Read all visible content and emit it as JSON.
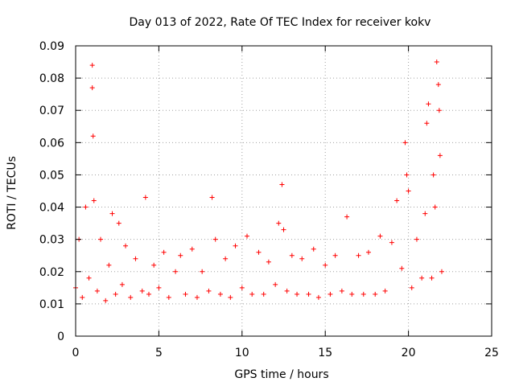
{
  "chart_data": {
    "type": "scatter",
    "title": "Day 013 of 2022, Rate Of TEC Index for receiver kokv",
    "xlabel": "GPS time / hours",
    "ylabel": "ROTI / TECUs",
    "xlim": [
      0,
      25
    ],
    "ylim": [
      0,
      0.09
    ],
    "xticks": [
      0,
      5,
      10,
      15,
      20,
      25
    ],
    "yticks": [
      0,
      0.01,
      0.02,
      0.03,
      0.04,
      0.05,
      0.06,
      0.07,
      0.08,
      0.09
    ],
    "xtick_labels": [
      "0",
      "5",
      "10",
      "15",
      "20",
      "25"
    ],
    "ytick_labels": [
      "0",
      "0.01",
      "0.02",
      "0.03",
      "0.04",
      "0.05",
      "0.06",
      "0.07",
      "0.08",
      "0.09"
    ],
    "grid": true,
    "marker": "plus",
    "color": "#ff0000",
    "series": [
      {
        "x": [
          0.0,
          0.2,
          0.4,
          0.6,
          0.8,
          1.0,
          1.0,
          1.05,
          1.1,
          1.3,
          1.5,
          1.8,
          2.0,
          2.2,
          2.4,
          2.6,
          2.8,
          3.0,
          3.3,
          3.6,
          4.0,
          4.2,
          4.4,
          4.7,
          5.0,
          5.3,
          5.6,
          6.0,
          6.3,
          6.6,
          7.0,
          7.3,
          7.6,
          8.0,
          8.2,
          8.4,
          8.7,
          9.0,
          9.3,
          9.6,
          10.0,
          10.3,
          10.6,
          11.0,
          11.3,
          11.6,
          12.0,
          12.2,
          12.4,
          12.5,
          12.7,
          13.0,
          13.3,
          13.6,
          14.0,
          14.3,
          14.6,
          15.0,
          15.3,
          15.6,
          16.0,
          16.3,
          16.6,
          17.0,
          17.3,
          17.6,
          18.0,
          18.3,
          18.6,
          19.0,
          19.3,
          19.6,
          19.8,
          19.9,
          20.0,
          20.2,
          20.5,
          20.8,
          21.0,
          21.1,
          21.2,
          21.4,
          21.5,
          21.6,
          21.7,
          21.8,
          21.85,
          21.9,
          22.0
        ],
        "y": [
          0.015,
          0.03,
          0.012,
          0.04,
          0.018,
          0.084,
          0.077,
          0.062,
          0.042,
          0.014,
          0.03,
          0.011,
          0.022,
          0.038,
          0.013,
          0.035,
          0.016,
          0.028,
          0.012,
          0.024,
          0.014,
          0.043,
          0.013,
          0.022,
          0.015,
          0.026,
          0.012,
          0.02,
          0.025,
          0.013,
          0.027,
          0.012,
          0.02,
          0.014,
          0.043,
          0.03,
          0.013,
          0.024,
          0.012,
          0.028,
          0.015,
          0.031,
          0.013,
          0.026,
          0.013,
          0.023,
          0.016,
          0.035,
          0.047,
          0.033,
          0.014,
          0.025,
          0.013,
          0.024,
          0.013,
          0.027,
          0.012,
          0.022,
          0.013,
          0.025,
          0.014,
          0.037,
          0.013,
          0.025,
          0.013,
          0.026,
          0.013,
          0.031,
          0.014,
          0.029,
          0.042,
          0.021,
          0.06,
          0.05,
          0.045,
          0.015,
          0.03,
          0.018,
          0.038,
          0.066,
          0.072,
          0.018,
          0.05,
          0.04,
          0.085,
          0.078,
          0.07,
          0.056,
          0.02
        ]
      }
    ]
  }
}
